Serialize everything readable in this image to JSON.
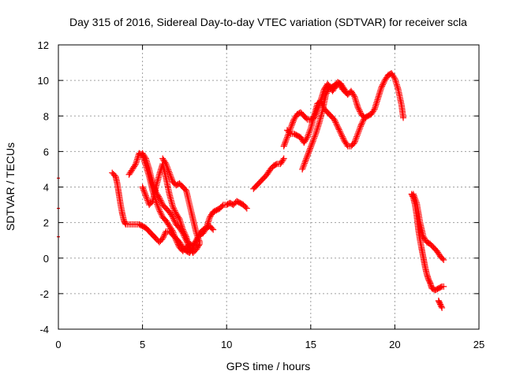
{
  "chart_data": {
    "type": "scatter",
    "title": "Day 315 of 2016, Sidereal Day-to-day VTEC variation (SDTVAR) for receiver scla",
    "xlabel": "GPS time / hours",
    "ylabel": "SDTVAR / TECUs",
    "xlim": [
      0,
      25
    ],
    "ylim": [
      -4,
      12
    ],
    "xticks": [
      0,
      5,
      10,
      15,
      20,
      25
    ],
    "yticks": [
      -4,
      -2,
      0,
      2,
      4,
      6,
      8,
      10,
      12
    ],
    "grid": true,
    "marker": "+",
    "color": "#ff0000",
    "series": [
      {
        "points": [
          [
            0.0,
            4.5
          ],
          [
            0.0,
            2.8
          ],
          [
            0.0,
            1.2
          ]
        ]
      },
      {
        "points": [
          [
            3.2,
            4.8
          ],
          [
            3.4,
            4.6
          ],
          [
            3.5,
            4.2
          ],
          [
            3.6,
            3.6
          ],
          [
            3.7,
            3.0
          ],
          [
            3.8,
            2.5
          ],
          [
            3.9,
            2.1
          ],
          [
            4.0,
            1.9
          ],
          [
            4.2,
            1.9
          ],
          [
            4.5,
            1.9
          ],
          [
            4.8,
            1.9
          ],
          [
            5.0,
            1.8
          ],
          [
            5.2,
            1.7
          ],
          [
            5.5,
            1.4
          ],
          [
            5.8,
            1.1
          ],
          [
            6.0,
            0.9
          ],
          [
            6.2,
            1.1
          ],
          [
            6.4,
            1.5
          ],
          [
            6.6,
            1.5
          ],
          [
            6.8,
            1.3
          ],
          [
            7.0,
            1.1
          ],
          [
            7.2,
            0.9
          ],
          [
            7.4,
            0.6
          ],
          [
            7.6,
            0.4
          ],
          [
            7.8,
            0.3
          ],
          [
            8.0,
            0.6
          ],
          [
            8.2,
            1.0
          ],
          [
            8.4,
            1.3
          ],
          [
            8.6,
            1.4
          ],
          [
            8.8,
            1.7
          ],
          [
            9.0,
            1.8
          ],
          [
            9.2,
            1.6
          ]
        ]
      },
      {
        "points": [
          [
            4.2,
            4.7
          ],
          [
            4.4,
            5.0
          ],
          [
            4.6,
            5.3
          ],
          [
            4.8,
            5.9
          ],
          [
            5.0,
            5.8
          ],
          [
            5.2,
            5.2
          ],
          [
            5.4,
            4.6
          ],
          [
            5.6,
            3.8
          ],
          [
            5.8,
            3.2
          ],
          [
            6.0,
            2.7
          ],
          [
            6.2,
            2.3
          ],
          [
            6.4,
            2.1
          ],
          [
            6.6,
            1.8
          ],
          [
            6.8,
            1.5
          ],
          [
            7.0,
            1.0
          ],
          [
            7.2,
            0.6
          ],
          [
            7.4,
            0.4
          ],
          [
            7.6,
            0.6
          ],
          [
            7.8,
            0.8
          ],
          [
            8.0,
            0.7
          ],
          [
            8.2,
            1.0
          ],
          [
            8.4,
            1.4
          ],
          [
            8.6,
            1.6
          ],
          [
            8.8,
            1.7
          ],
          [
            9.0,
            2.3
          ],
          [
            9.2,
            2.6
          ],
          [
            9.4,
            2.7
          ],
          [
            9.6,
            2.8
          ],
          [
            9.8,
            3.0
          ],
          [
            10.0,
            3.0
          ],
          [
            10.2,
            3.1
          ],
          [
            10.4,
            3.0
          ],
          [
            10.6,
            3.2
          ],
          [
            10.8,
            3.1
          ],
          [
            11.0,
            3.0
          ],
          [
            11.2,
            2.8
          ]
        ]
      },
      {
        "points": [
          [
            5.0,
            5.9
          ],
          [
            5.2,
            5.6
          ],
          [
            5.4,
            5.0
          ],
          [
            5.6,
            4.2
          ],
          [
            5.8,
            3.7
          ],
          [
            6.0,
            3.4
          ],
          [
            6.2,
            3.0
          ],
          [
            6.4,
            2.8
          ],
          [
            6.6,
            2.6
          ],
          [
            6.8,
            2.3
          ],
          [
            7.0,
            1.9
          ],
          [
            7.2,
            1.7
          ],
          [
            7.4,
            1.4
          ],
          [
            7.6,
            1.0
          ],
          [
            7.8,
            0.6
          ],
          [
            8.0,
            0.3
          ],
          [
            8.2,
            0.5
          ],
          [
            8.4,
            0.8
          ]
        ]
      },
      {
        "points": [
          [
            5.0,
            4.0
          ],
          [
            5.2,
            3.5
          ],
          [
            5.4,
            3.0
          ],
          [
            5.6,
            3.2
          ],
          [
            5.8,
            4.0
          ],
          [
            6.0,
            4.7
          ],
          [
            6.2,
            5.3
          ],
          [
            6.4,
            4.5
          ],
          [
            6.6,
            3.6
          ],
          [
            6.8,
            2.9
          ],
          [
            7.0,
            2.5
          ],
          [
            7.2,
            2.2
          ],
          [
            7.4,
            1.6
          ],
          [
            7.6,
            1.2
          ],
          [
            7.8,
            0.5
          ]
        ]
      },
      {
        "points": [
          [
            6.2,
            5.6
          ],
          [
            6.4,
            5.3
          ],
          [
            6.6,
            4.8
          ],
          [
            6.8,
            4.3
          ],
          [
            7.0,
            4.1
          ],
          [
            7.2,
            4.2
          ],
          [
            7.4,
            4.0
          ],
          [
            7.6,
            3.8
          ],
          [
            7.8,
            3.0
          ],
          [
            8.0,
            2.2
          ],
          [
            8.2,
            1.4
          ],
          [
            8.4,
            0.9
          ]
        ]
      },
      {
        "points": [
          [
            11.6,
            3.9
          ],
          [
            11.8,
            4.1
          ],
          [
            12.0,
            4.3
          ],
          [
            12.2,
            4.5
          ],
          [
            12.4,
            4.7
          ],
          [
            12.6,
            5.0
          ],
          [
            12.8,
            5.2
          ],
          [
            13.0,
            5.3
          ],
          [
            13.2,
            5.3
          ],
          [
            13.4,
            5.6
          ]
        ]
      },
      {
        "points": [
          [
            13.4,
            6.3
          ],
          [
            13.6,
            6.8
          ],
          [
            13.8,
            7.3
          ],
          [
            14.0,
            7.8
          ],
          [
            14.2,
            8.1
          ],
          [
            14.4,
            8.2
          ],
          [
            14.6,
            8.0
          ],
          [
            14.8,
            7.8
          ],
          [
            15.0,
            7.8
          ],
          [
            15.2,
            7.9
          ],
          [
            15.4,
            8.4
          ],
          [
            15.6,
            8.9
          ],
          [
            15.8,
            9.5
          ],
          [
            16.0,
            9.8
          ],
          [
            16.2,
            9.6
          ],
          [
            16.4,
            9.7
          ],
          [
            16.6,
            9.9
          ],
          [
            16.8,
            9.8
          ],
          [
            17.0,
            9.5
          ],
          [
            17.2,
            9.2
          ],
          [
            17.4,
            9.4
          ],
          [
            17.6,
            9.1
          ],
          [
            17.8,
            8.5
          ],
          [
            18.0,
            8.1
          ],
          [
            18.2,
            7.9
          ],
          [
            18.4,
            8.0
          ],
          [
            18.6,
            8.1
          ],
          [
            18.8,
            8.4
          ],
          [
            19.0,
            9.0
          ],
          [
            19.2,
            9.6
          ],
          [
            19.4,
            10.0
          ],
          [
            19.6,
            10.3
          ],
          [
            19.8,
            10.4
          ],
          [
            20.0,
            10.1
          ],
          [
            20.2,
            9.5
          ],
          [
            20.4,
            8.6
          ],
          [
            20.5,
            7.9
          ]
        ]
      },
      {
        "points": [
          [
            13.6,
            7.2
          ],
          [
            13.8,
            7.0
          ],
          [
            14.0,
            7.0
          ],
          [
            14.2,
            6.9
          ],
          [
            14.4,
            6.8
          ],
          [
            14.6,
            6.5
          ],
          [
            14.8,
            6.8
          ],
          [
            15.0,
            7.3
          ],
          [
            15.2,
            8.0
          ],
          [
            15.4,
            8.7
          ],
          [
            15.6,
            8.8
          ],
          [
            15.8,
            8.4
          ],
          [
            16.0,
            8.2
          ],
          [
            16.2,
            8.0
          ],
          [
            16.4,
            7.8
          ],
          [
            16.6,
            7.4
          ],
          [
            16.8,
            7.0
          ],
          [
            17.0,
            6.6
          ],
          [
            17.2,
            6.3
          ],
          [
            17.4,
            6.3
          ],
          [
            17.6,
            6.5
          ],
          [
            17.8,
            7.0
          ],
          [
            18.0,
            7.5
          ],
          [
            18.2,
            7.9
          ]
        ]
      },
      {
        "points": [
          [
            14.5,
            5.0
          ],
          [
            14.7,
            5.5
          ],
          [
            14.9,
            6.0
          ],
          [
            15.1,
            6.5
          ],
          [
            15.3,
            7.0
          ],
          [
            15.5,
            7.6
          ],
          [
            15.7,
            8.3
          ],
          [
            15.9,
            9.2
          ],
          [
            16.1,
            9.6
          ],
          [
            16.3,
            9.4
          ],
          [
            16.5,
            9.7
          ],
          [
            16.7,
            9.8
          ],
          [
            16.9,
            9.5
          ],
          [
            17.1,
            9.3
          ]
        ]
      },
      {
        "points": [
          [
            21.0,
            3.6
          ],
          [
            21.1,
            3.4
          ],
          [
            21.2,
            3.0
          ],
          [
            21.3,
            2.4
          ],
          [
            21.4,
            1.6
          ],
          [
            21.5,
            1.0
          ],
          [
            21.6,
            0.5
          ],
          [
            21.7,
            0.0
          ],
          [
            21.8,
            -0.5
          ],
          [
            21.9,
            -0.9
          ],
          [
            22.0,
            -1.2
          ],
          [
            22.1,
            -1.4
          ],
          [
            22.2,
            -1.7
          ],
          [
            22.4,
            -1.8
          ],
          [
            22.6,
            -1.7
          ],
          [
            22.8,
            -1.6
          ],
          [
            22.9,
            -1.6
          ]
        ]
      },
      {
        "points": [
          [
            21.1,
            3.6
          ],
          [
            21.3,
            3.1
          ],
          [
            21.5,
            2.0
          ],
          [
            21.7,
            1.2
          ],
          [
            21.9,
            0.9
          ],
          [
            22.1,
            0.8
          ],
          [
            22.3,
            0.6
          ],
          [
            22.5,
            0.4
          ],
          [
            22.7,
            0.1
          ],
          [
            22.9,
            -0.1
          ]
        ]
      },
      {
        "points": [
          [
            22.6,
            -2.4
          ],
          [
            22.7,
            -2.6
          ],
          [
            22.8,
            -2.8
          ]
        ]
      }
    ]
  }
}
